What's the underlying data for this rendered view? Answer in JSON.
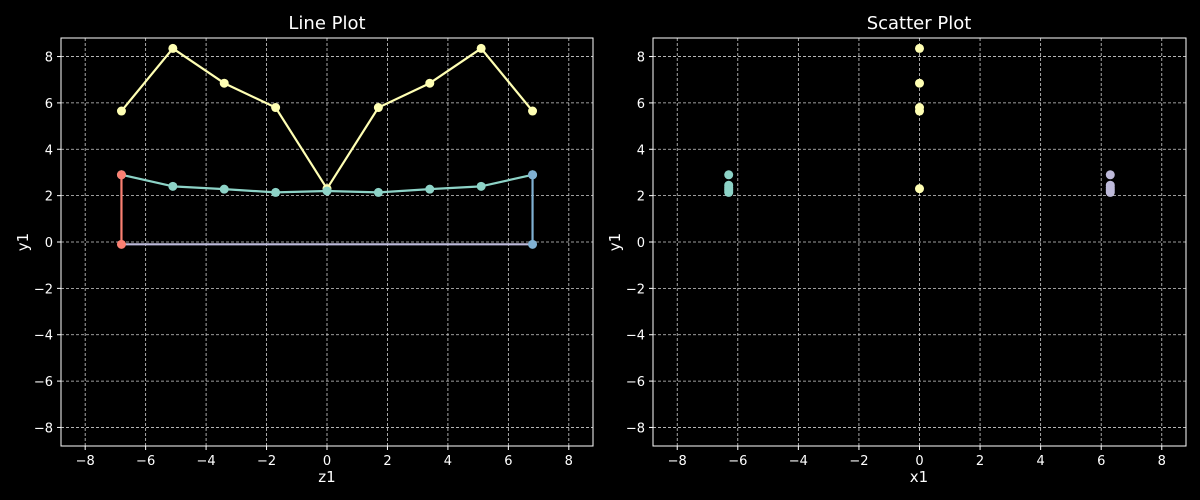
{
  "chart_data": [
    {
      "type": "line",
      "title": "Line Plot",
      "xlabel": "z1",
      "ylabel": "y1",
      "xlim": [
        -8.8,
        8.8
      ],
      "ylim": [
        -8.8,
        8.8
      ],
      "xticks": [
        -8,
        -6,
        -4,
        -2,
        0,
        2,
        4,
        6,
        8
      ],
      "yticks": [
        -8,
        -6,
        -4,
        -2,
        0,
        2,
        4,
        6,
        8
      ],
      "grid": true,
      "series": [
        {
          "color": "#ffffb3",
          "x": [
            -6.8,
            -5.1,
            -3.4,
            -1.7,
            0,
            1.7,
            3.4,
            5.1,
            6.8
          ],
          "y": [
            5.65,
            8.35,
            6.85,
            5.8,
            2.3,
            5.8,
            6.85,
            8.35,
            5.65
          ]
        },
        {
          "color": "#8dd3c7",
          "x": [
            -6.8,
            -5.1,
            -3.4,
            -1.7,
            0,
            1.7,
            3.4,
            5.1,
            6.8
          ],
          "y": [
            2.9,
            2.4,
            2.28,
            2.14,
            2.2,
            2.14,
            2.28,
            2.4,
            2.9
          ]
        },
        {
          "color": "#bebada",
          "x": [
            -6.8,
            6.8
          ],
          "y": [
            -0.1,
            -0.1
          ],
          "markers": false
        },
        {
          "color": "#fb8072",
          "x": [
            -6.8,
            -6.8
          ],
          "y": [
            -0.1,
            2.9
          ]
        },
        {
          "color": "#80b1d3",
          "x": [
            6.8,
            6.8
          ],
          "y": [
            -0.1,
            2.9
          ]
        }
      ]
    },
    {
      "type": "scatter",
      "title": "Scatter Plot",
      "xlabel": "x1",
      "ylabel": "y1",
      "xlim": [
        -8.8,
        8.8
      ],
      "ylim": [
        -8.8,
        8.8
      ],
      "xticks": [
        -8,
        -6,
        -4,
        -2,
        0,
        2,
        4,
        6,
        8
      ],
      "yticks": [
        -8,
        -6,
        -4,
        -2,
        0,
        2,
        4,
        6,
        8
      ],
      "grid": true,
      "series": [
        {
          "color": "#8dd3c7",
          "x": [
            -6.3,
            -6.3,
            -6.3,
            -6.3,
            -6.3,
            -6.3
          ],
          "y": [
            2.9,
            2.45,
            2.35,
            2.28,
            2.2,
            2.14
          ]
        },
        {
          "color": "#ffffb3",
          "x": [
            0,
            0,
            0,
            0,
            0
          ],
          "y": [
            8.35,
            6.85,
            5.8,
            5.65,
            2.3
          ]
        },
        {
          "color": "#bebada",
          "x": [
            6.3,
            6.3,
            6.3,
            6.3,
            6.3,
            6.3
          ],
          "y": [
            2.9,
            2.45,
            2.35,
            2.28,
            2.2,
            2.14
          ]
        }
      ]
    }
  ]
}
